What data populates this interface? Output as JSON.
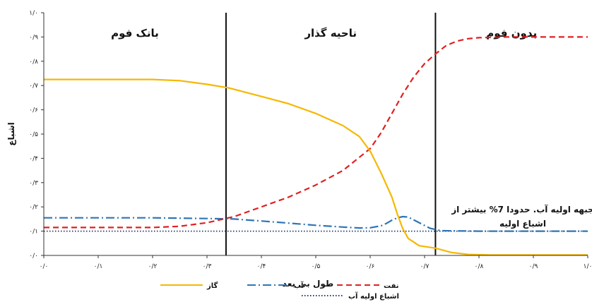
{
  "chart_data": {
    "type": "line",
    "xlabel": "طول بی بعد",
    "ylabel": "اشباع",
    "xlim": [
      0,
      1
    ],
    "ylim": [
      0,
      1
    ],
    "x_ticks": [
      "۰/۰",
      "۰/۱",
      "۰/۲",
      "۰/۳",
      "۰/۴",
      "۰/۵",
      "۰/۶",
      "۰/۷",
      "۰/۸",
      "۰/۹",
      "۱/۰"
    ],
    "y_ticks": [
      "۰/۰",
      "۰/۱",
      "۰/۲",
      "۰/۳",
      "۰/۴",
      "۰/۵",
      "۰/۶",
      "۰/۷",
      "۰/۸",
      "۰/۹",
      "۱/۰"
    ],
    "regions": [
      {
        "label": "بانک فوم",
        "from": 0.0,
        "to": 0.335
      },
      {
        "label": "ناحیه گذار",
        "from": 0.335,
        "to": 0.72
      },
      {
        "label": "بدون فوم",
        "from": 0.72,
        "to": 1.0
      }
    ],
    "annotation": {
      "line1": "جبهه اولیه آب. حدودا 7% بیشتر از",
      "line2": "اشباع اولیه",
      "x": 0.86,
      "y": 0.165
    },
    "series": [
      {
        "name": "گاز",
        "color": "#F5B800",
        "dash": "solid",
        "x": [
          0,
          0.1,
          0.2,
          0.25,
          0.3,
          0.34,
          0.4,
          0.45,
          0.5,
          0.55,
          0.58,
          0.6,
          0.62,
          0.64,
          0.65,
          0.66,
          0.67,
          0.69,
          0.72,
          0.75,
          0.78,
          0.82,
          1.0
        ],
        "y": [
          0.725,
          0.725,
          0.725,
          0.72,
          0.705,
          0.69,
          0.655,
          0.625,
          0.585,
          0.535,
          0.49,
          0.43,
          0.34,
          0.24,
          0.17,
          0.11,
          0.07,
          0.04,
          0.03,
          0.012,
          0.004,
          0.002,
          0.002
        ]
      },
      {
        "name": "آب",
        "color": "#2E75B6",
        "dash": "dashdot",
        "x": [
          0,
          0.1,
          0.2,
          0.3,
          0.35,
          0.4,
          0.45,
          0.5,
          0.55,
          0.58,
          0.6,
          0.62,
          0.63,
          0.64,
          0.65,
          0.66,
          0.67,
          0.69,
          0.71,
          0.73,
          0.8,
          0.9,
          1.0
        ],
        "y": [
          0.155,
          0.155,
          0.155,
          0.152,
          0.15,
          0.142,
          0.133,
          0.124,
          0.117,
          0.113,
          0.114,
          0.122,
          0.132,
          0.145,
          0.155,
          0.16,
          0.158,
          0.135,
          0.112,
          0.102,
          0.1,
          0.1,
          0.1
        ]
      },
      {
        "name": "نفت",
        "color": "#E02020",
        "dash": "dashed",
        "x": [
          0,
          0.1,
          0.2,
          0.25,
          0.3,
          0.35,
          0.4,
          0.45,
          0.5,
          0.55,
          0.6,
          0.62,
          0.64,
          0.66,
          0.68,
          0.7,
          0.72,
          0.74,
          0.76,
          0.78,
          0.8,
          0.85,
          0.9,
          1.0
        ],
        "y": [
          0.115,
          0.115,
          0.115,
          0.12,
          0.135,
          0.16,
          0.2,
          0.24,
          0.29,
          0.35,
          0.44,
          0.505,
          0.585,
          0.665,
          0.735,
          0.79,
          0.83,
          0.865,
          0.883,
          0.893,
          0.897,
          0.9,
          0.9,
          0.9
        ]
      },
      {
        "name": "اشباع اولیه آب",
        "color": "#1F3A6B",
        "dash": "dotted",
        "x": [
          0,
          1.0
        ],
        "y": [
          0.1,
          0.1
        ]
      }
    ]
  }
}
